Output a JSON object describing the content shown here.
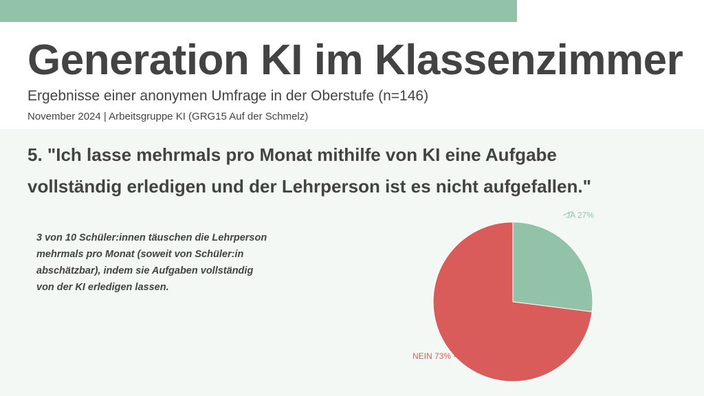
{
  "header": {
    "title": "Generation KI im Klassenzimmer",
    "subtitle": "Ergebnisse einer anonymen Umfrage in der Oberstufe (n=146)",
    "meta": "November 2024 | Arbeitsgruppe KI (GRG15 Auf der Schmelz)"
  },
  "question": {
    "text": "5. \"Ich lasse mehrmals pro Monat mithilfe von KI eine Aufgabe vollständig erledigen und der Lehrperson ist es nicht aufgefallen.\""
  },
  "summary": {
    "text": "3 von 10 Schüler:innen täuschen die Lehrperson mehrmals pro Monat (soweit von Schüler:in abschätzbar), indem sie Aufgaben vollständig von der KI erledigen lassen."
  },
  "colors": {
    "accent_green": "#92c3a8",
    "accent_red": "#d95b5a",
    "background_panel": "#f3f8f4",
    "text": "#434343"
  },
  "chart_data": {
    "type": "pie",
    "slices": [
      {
        "label": "JA 27%",
        "value": 27,
        "color": "#92c3a8"
      },
      {
        "label": "NEIN 73%",
        "value": 73,
        "color": "#d95b5a"
      }
    ],
    "legend": "none"
  }
}
